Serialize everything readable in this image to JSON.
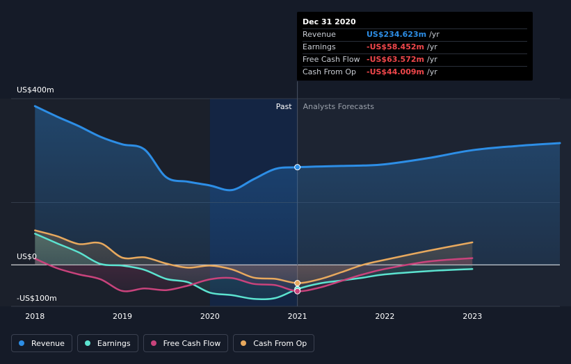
{
  "chart_data": {
    "type": "line",
    "currency_unit": "US$",
    "x_ticks": [
      "2018",
      "2019",
      "2020",
      "2021",
      "2022",
      "2023"
    ],
    "y_ticks": [
      {
        "value": 400,
        "label": "US$400m"
      },
      {
        "value": 0,
        "label": "US$0"
      },
      {
        "value": -100,
        "label": "-US$100m"
      }
    ],
    "xlim": [
      2017.99,
      2024.0
    ],
    "ylim": [
      -100,
      400
    ],
    "divider_x": 2021.0,
    "region_labels": {
      "past": "Past",
      "forecast": "Analysts Forecasts"
    },
    "series": [
      {
        "name": "Revenue",
        "color": "#2d8ee6",
        "points": [
          [
            2018.0,
            382
          ],
          [
            2018.25,
            357
          ],
          [
            2018.5,
            334
          ],
          [
            2018.75,
            308
          ],
          [
            2019.0,
            290
          ],
          [
            2019.25,
            278
          ],
          [
            2019.5,
            211
          ],
          [
            2019.75,
            200
          ],
          [
            2020.0,
            191
          ],
          [
            2020.25,
            180
          ],
          [
            2020.5,
            206
          ],
          [
            2020.75,
            231
          ],
          [
            2021.0,
            235
          ],
          [
            2021.5,
            238
          ],
          [
            2021.75,
            239
          ],
          [
            2022.0,
            242
          ],
          [
            2022.5,
            257
          ],
          [
            2023.0,
            276
          ],
          [
            2023.5,
            286
          ],
          [
            2024.0,
            293
          ]
        ]
      },
      {
        "name": "Earnings",
        "color": "#5ce3d0",
        "points": [
          [
            2018.0,
            75
          ],
          [
            2018.25,
            52
          ],
          [
            2018.5,
            30
          ],
          [
            2018.75,
            2
          ],
          [
            2019.0,
            -2
          ],
          [
            2019.25,
            -12
          ],
          [
            2019.5,
            -34
          ],
          [
            2019.75,
            -42
          ],
          [
            2020.0,
            -67
          ],
          [
            2020.25,
            -73
          ],
          [
            2020.5,
            -82
          ],
          [
            2020.75,
            -80
          ],
          [
            2021.0,
            -58.452
          ],
          [
            2021.25,
            -45
          ],
          [
            2021.5,
            -38
          ],
          [
            2021.75,
            -31
          ],
          [
            2022.0,
            -23
          ],
          [
            2022.5,
            -15
          ],
          [
            2023.0,
            -10
          ]
        ]
      },
      {
        "name": "Free Cash Flow",
        "color": "#c9437c",
        "points": [
          [
            2018.0,
            15
          ],
          [
            2018.25,
            -8
          ],
          [
            2018.5,
            -23
          ],
          [
            2018.75,
            -35
          ],
          [
            2019.0,
            -63
          ],
          [
            2019.25,
            -57
          ],
          [
            2019.5,
            -61
          ],
          [
            2019.75,
            -50
          ],
          [
            2020.0,
            -35
          ],
          [
            2020.25,
            -32
          ],
          [
            2020.5,
            -46
          ],
          [
            2020.75,
            -49
          ],
          [
            2021.0,
            -63.572
          ],
          [
            2021.25,
            -55
          ],
          [
            2021.5,
            -39
          ],
          [
            2021.75,
            -23
          ],
          [
            2022.0,
            -10
          ],
          [
            2022.5,
            8
          ],
          [
            2023.0,
            16
          ]
        ]
      },
      {
        "name": "Cash From Op",
        "color": "#e8a95e",
        "points": [
          [
            2018.0,
            83
          ],
          [
            2018.25,
            69
          ],
          [
            2018.5,
            50
          ],
          [
            2018.75,
            52
          ],
          [
            2019.0,
            17
          ],
          [
            2019.25,
            18
          ],
          [
            2019.5,
            3
          ],
          [
            2019.75,
            -7
          ],
          [
            2020.0,
            -2
          ],
          [
            2020.25,
            -11
          ],
          [
            2020.5,
            -31
          ],
          [
            2020.75,
            -34
          ],
          [
            2021.0,
            -44.009
          ],
          [
            2021.25,
            -35
          ],
          [
            2021.5,
            -18
          ],
          [
            2021.75,
            0
          ],
          [
            2022.0,
            12
          ],
          [
            2022.5,
            34
          ],
          [
            2023.0,
            54
          ]
        ]
      }
    ],
    "grid": true,
    "legend_position": "bottom-left"
  },
  "tooltip": {
    "date": "Dec 31 2020",
    "rows": [
      {
        "name": "Revenue",
        "value": "US$234.623m",
        "unit": "/yr",
        "color": "#2d8ee6"
      },
      {
        "name": "Earnings",
        "value": "-US$58.452m",
        "unit": "/yr",
        "color": "#f0474b"
      },
      {
        "name": "Free Cash Flow",
        "value": "-US$63.572m",
        "unit": "/yr",
        "color": "#f0474b"
      },
      {
        "name": "Cash From Op",
        "value": "-US$44.009m",
        "unit": "/yr",
        "color": "#f0474b"
      }
    ]
  },
  "legend": [
    {
      "label": "Revenue",
      "color": "#2d8ee6"
    },
    {
      "label": "Earnings",
      "color": "#5ce3d0"
    },
    {
      "label": "Free Cash Flow",
      "color": "#c9437c"
    },
    {
      "label": "Cash From Op",
      "color": "#e8a95e"
    }
  ]
}
